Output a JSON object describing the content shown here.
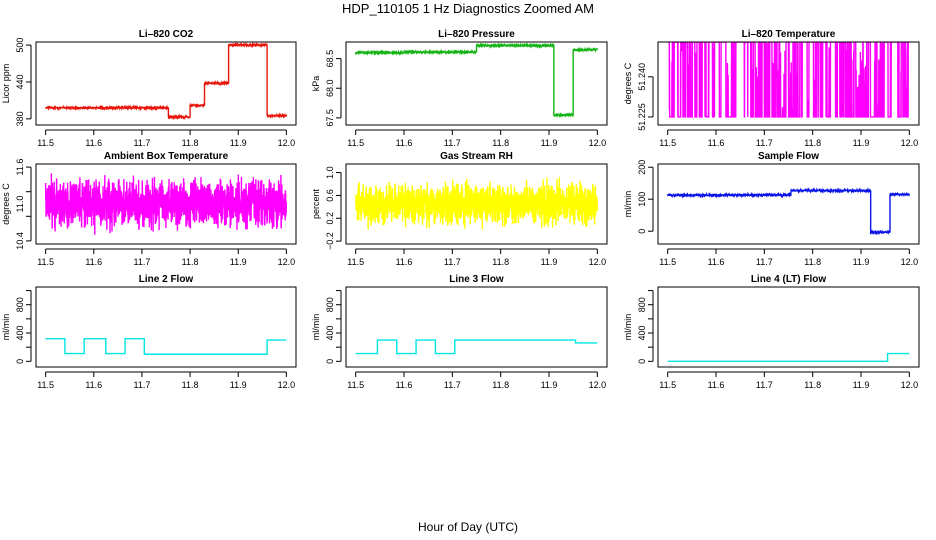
{
  "figure": {
    "title": "HDP_110105  1 Hz Diagnostics Zoomed AM",
    "xlabel": "Hour of Day (UTC)"
  },
  "chart_data": [
    {
      "type": "line",
      "title": "Li–820 CO2",
      "ylabel": "Licor ppm",
      "color": "#e8140a",
      "xlim": [
        11.5,
        12.0
      ],
      "ylim": [
        370,
        505
      ],
      "yticks": [
        380,
        440,
        500
      ],
      "ytick_labels": [
        "380",
        "440",
        "500"
      ],
      "xticks": [
        11.5,
        11.6,
        11.7,
        11.8,
        11.9,
        12.0
      ],
      "xtick_labels": [
        "11.5",
        "11.6",
        "11.7",
        "11.8",
        "11.9",
        "12.0"
      ],
      "style": "step",
      "noise": 1.2,
      "segments": [
        [
          11.5,
          11.755,
          398
        ],
        [
          11.755,
          11.8,
          383
        ],
        [
          11.8,
          11.83,
          402
        ],
        [
          11.83,
          11.88,
          438
        ],
        [
          11.88,
          11.96,
          500
        ],
        [
          11.96,
          12.0,
          385
        ]
      ]
    },
    {
      "type": "line",
      "title": "Li–820 Pressure",
      "ylabel": "kPa",
      "color": "#14b414",
      "xlim": [
        11.5,
        12.0
      ],
      "ylim": [
        67.38,
        68.78
      ],
      "yticks": [
        67.5,
        68.0,
        68.5
      ],
      "ytick_labels": [
        "67.5",
        "68.0",
        "68.5"
      ],
      "xticks": [
        11.5,
        11.6,
        11.7,
        11.8,
        11.9,
        12.0
      ],
      "xtick_labels": [
        "11.5",
        "11.6",
        "11.7",
        "11.8",
        "11.9",
        "12.0"
      ],
      "style": "step",
      "noise": 0.01,
      "segments": [
        [
          11.5,
          11.6,
          68.6
        ],
        [
          11.6,
          11.75,
          68.61
        ],
        [
          11.75,
          11.91,
          68.72
        ],
        [
          11.91,
          11.95,
          67.55
        ],
        [
          11.95,
          12.0,
          68.65
        ]
      ]
    },
    {
      "type": "line",
      "title": "Li–820 Temperature",
      "ylabel": "degrees C",
      "color": "#ff00ff",
      "xlim": [
        11.5,
        12.0
      ],
      "ylim": [
        51.222,
        51.253
      ],
      "yticks": [
        51.225,
        51.24
      ],
      "ytick_labels": [
        "51.225",
        "51.240"
      ],
      "xticks": [
        11.5,
        11.6,
        11.7,
        11.8,
        11.9,
        12.0
      ],
      "xtick_labels": [
        "11.5",
        "11.6",
        "11.7",
        "11.8",
        "11.9",
        "12.0"
      ],
      "style": "flicker",
      "low": 51.225,
      "high": 51.253
    },
    {
      "type": "line",
      "title": "Ambient Box Temperature",
      "ylabel": "degrees C",
      "color": "#ff00ff",
      "xlim": [
        11.5,
        12.0
      ],
      "ylim": [
        10.35,
        11.65
      ],
      "yticks": [
        10.4,
        10.8,
        11.2,
        11.6
      ],
      "ytick_labels": [
        "10.4",
        "11.0",
        "11.6"
      ],
      "ytick_label_values": [
        10.4,
        11.0,
        11.6
      ],
      "xticks": [
        11.5,
        11.6,
        11.7,
        11.8,
        11.9,
        12.0
      ],
      "xtick_labels": [
        "11.5",
        "11.6",
        "11.7",
        "11.8",
        "11.9",
        "12.0"
      ],
      "style": "noise",
      "center": 11.0,
      "spread": 0.55
    },
    {
      "type": "line",
      "title": "Gas Stream RH",
      "ylabel": "percent",
      "color": "#ffff00",
      "xlim": [
        11.5,
        12.0
      ],
      "ylim": [
        -0.25,
        1.15
      ],
      "yticks": [
        -0.2,
        0.2,
        0.6,
        1.0
      ],
      "ytick_labels": [
        "−0.2",
        "0.2",
        "0.6",
        "1.0"
      ],
      "xticks": [
        11.5,
        11.6,
        11.7,
        11.8,
        11.9,
        12.0
      ],
      "xtick_labels": [
        "11.5",
        "11.6",
        "11.7",
        "11.8",
        "11.9",
        "12.0"
      ],
      "style": "noise",
      "center": 0.45,
      "spread": 0.5
    },
    {
      "type": "line",
      "title": "Sample Flow",
      "ylabel": "ml/min",
      "color": "#0a14e6",
      "xlim": [
        11.5,
        12.0
      ],
      "ylim": [
        -40,
        210
      ],
      "yticks": [
        0,
        100,
        200
      ],
      "ytick_labels": [
        "0",
        "100",
        "200"
      ],
      "xticks": [
        11.5,
        11.6,
        11.7,
        11.8,
        11.9,
        12.0
      ],
      "xtick_labels": [
        "11.5",
        "11.6",
        "11.7",
        "11.8",
        "11.9",
        "12.0"
      ],
      "style": "step",
      "noise": 3,
      "segments": [
        [
          11.5,
          11.755,
          113
        ],
        [
          11.755,
          11.92,
          127
        ],
        [
          11.92,
          11.96,
          -3
        ],
        [
          11.96,
          12.0,
          115
        ]
      ]
    },
    {
      "type": "line",
      "title": "Line 2 Flow",
      "ylabel": "ml/min",
      "color": "#00e5e5",
      "xlim": [
        11.5,
        12.0
      ],
      "ylim": [
        -80,
        1050
      ],
      "yticks": [
        0,
        200,
        400,
        600,
        800,
        1000
      ],
      "ytick_labels": [
        "0",
        "400",
        "800"
      ],
      "ytick_label_values": [
        0,
        400,
        800
      ],
      "xticks": [
        11.5,
        11.6,
        11.7,
        11.8,
        11.9,
        12.0
      ],
      "xtick_labels": [
        "11.5",
        "11.6",
        "11.7",
        "11.8",
        "11.9",
        "12.0"
      ],
      "style": "step",
      "noise": 0,
      "segments": [
        [
          11.5,
          11.54,
          320
        ],
        [
          11.54,
          11.58,
          110
        ],
        [
          11.58,
          11.625,
          320
        ],
        [
          11.625,
          11.665,
          110
        ],
        [
          11.665,
          11.705,
          320
        ],
        [
          11.705,
          11.96,
          100
        ],
        [
          11.96,
          12.0,
          300
        ]
      ]
    },
    {
      "type": "line",
      "title": "Line 3 Flow",
      "ylabel": "ml/min",
      "color": "#00e5e5",
      "xlim": [
        11.5,
        12.0
      ],
      "ylim": [
        -80,
        1050
      ],
      "yticks": [
        0,
        200,
        400,
        600,
        800,
        1000
      ],
      "ytick_labels": [
        "0",
        "400",
        "800"
      ],
      "ytick_label_values": [
        0,
        400,
        800
      ],
      "xticks": [
        11.5,
        11.6,
        11.7,
        11.8,
        11.9,
        12.0
      ],
      "xtick_labels": [
        "11.5",
        "11.6",
        "11.7",
        "11.8",
        "11.9",
        "12.0"
      ],
      "style": "step",
      "noise": 0,
      "segments": [
        [
          11.5,
          11.545,
          110
        ],
        [
          11.545,
          11.585,
          300
        ],
        [
          11.585,
          11.625,
          110
        ],
        [
          11.625,
          11.665,
          300
        ],
        [
          11.665,
          11.705,
          110
        ],
        [
          11.705,
          11.955,
          300
        ],
        [
          11.955,
          12.0,
          260
        ]
      ]
    },
    {
      "type": "line",
      "title": "Line 4 (LT) Flow",
      "ylabel": "ml/min",
      "color": "#00e5e5",
      "xlim": [
        11.5,
        12.0
      ],
      "ylim": [
        -80,
        1050
      ],
      "yticks": [
        0,
        200,
        400,
        600,
        800,
        1000
      ],
      "ytick_labels": [
        "0",
        "400",
        "800"
      ],
      "ytick_label_values": [
        0,
        400,
        800
      ],
      "xticks": [
        11.5,
        11.6,
        11.7,
        11.8,
        11.9,
        12.0
      ],
      "xtick_labels": [
        "11.5",
        "11.6",
        "11.7",
        "11.8",
        "11.9",
        "12.0"
      ],
      "style": "step",
      "noise": 0,
      "segments": [
        [
          11.5,
          11.955,
          0
        ],
        [
          11.955,
          12.0,
          110
        ]
      ]
    }
  ]
}
